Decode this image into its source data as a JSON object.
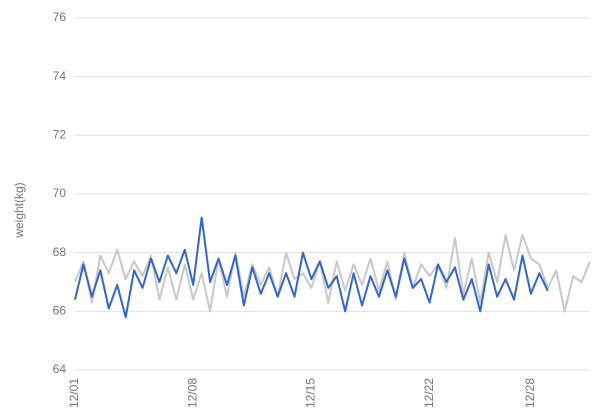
{
  "chart_data": {
    "type": "line",
    "y_label": "weight(kg)",
    "categories": [
      "12/01",
      null,
      null,
      null,
      null,
      null,
      null,
      null,
      null,
      null,
      null,
      null,
      null,
      null,
      "12/08",
      null,
      null,
      null,
      null,
      null,
      null,
      null,
      null,
      null,
      null,
      null,
      null,
      null,
      "12/15",
      null,
      null,
      null,
      null,
      null,
      null,
      null,
      null,
      null,
      null,
      null,
      null,
      null,
      "12/22",
      null,
      null,
      null,
      null,
      null,
      null,
      null,
      null,
      null,
      null,
      null,
      "12/28",
      null,
      null,
      null,
      null,
      null,
      null,
      null
    ],
    "series": [
      {
        "color": "#c8c8c8",
        "values": [
          67.0,
          67.7,
          66.3,
          67.9,
          67.3,
          68.1,
          67.1,
          67.7,
          67.2,
          67.9,
          66.4,
          67.5,
          66.4,
          67.6,
          66.4,
          67.3,
          66.0,
          67.8,
          66.5,
          68.0,
          66.5,
          67.6,
          66.9,
          67.5,
          66.5,
          68.0,
          67.1,
          67.3,
          66.8,
          67.7,
          66.3,
          67.7,
          66.7,
          67.6,
          66.9,
          67.8,
          66.7,
          67.7,
          66.4,
          68.0,
          66.8,
          67.6,
          67.2,
          67.6,
          66.8,
          68.5,
          66.6,
          67.8,
          66.3,
          68.0,
          67.0,
          68.6,
          67.4,
          68.6,
          67.8,
          67.6,
          66.8,
          67.4,
          66.0,
          67.2,
          67.0,
          67.7
        ]
      },
      {
        "color": "#3366cc",
        "values": [
          66.4,
          67.6,
          66.5,
          67.4,
          66.1,
          66.9,
          65.8,
          67.4,
          66.8,
          67.8,
          67.0,
          67.9,
          67.3,
          68.1,
          66.9,
          69.2,
          67.0,
          67.8,
          66.9,
          67.9,
          66.2,
          67.5,
          66.6,
          67.3,
          66.5,
          67.3,
          66.5,
          68.0,
          67.1,
          67.7,
          66.8,
          67.2,
          66.0,
          67.3,
          66.2,
          67.2,
          66.5,
          67.4,
          66.5,
          67.8,
          66.8,
          67.1,
          66.3,
          67.6,
          67.0,
          67.5,
          66.4,
          67.1,
          66.0,
          67.6,
          66.5,
          67.1,
          66.4,
          67.9,
          66.6,
          67.3,
          66.7,
          null,
          null,
          null,
          null,
          null
        ]
      }
    ],
    "ylim": [
      64,
      76
    ],
    "yticks": [
      64,
      66,
      68,
      70,
      72,
      74,
      76
    ],
    "grid": true
  }
}
